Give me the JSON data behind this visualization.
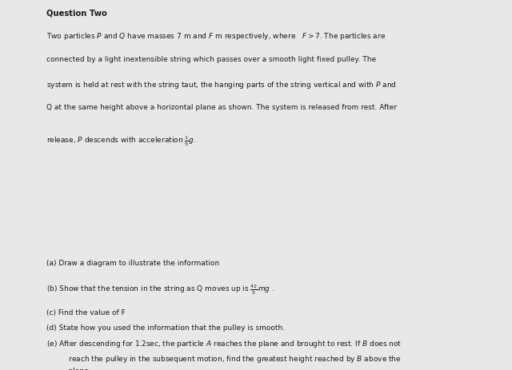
{
  "bg_color": "#e8e8e8",
  "top_panel_bg": "#ffffff",
  "bottom_panel_bg": "#ffffff",
  "divider_color": "#c0c0c0",
  "text_color": "#1a1a1a",
  "font_size_title": 7.2,
  "font_size_body": 6.5,
  "top_panel": {
    "title": "Question Two",
    "line1": "Two particles $P$ and $Q$ have masses 7 m and $F$ m respectively, where   $F > 7$. The particles are",
    "line2": "connected by a light inextensible string which passes over a smooth light fixed pulley. The",
    "line3": "system is held at rest with the string taut, the hanging parts of the string vertical and with $P$ and",
    "line4": "Q at the same height above a horizontal plane as shown. The system is released from rest. After",
    "line5_prefix": "release, $P$ descends with acceleration $\\frac{1}{5}g$."
  },
  "bottom_panel": {
    "line_a": "(a) Draw a diagram to illustrate the information",
    "line_b_prefix": "(b) Show that the tension in the string as Q moves up is $\\frac{42}{5}$$mg$ .",
    "line_c": "(c) Find the value of F",
    "line_d": "(d) State how you used the information that the pulley is smooth.",
    "line_e1": "(e) After descending for 1.2sec, the particle $A$ reaches the plane and brought to rest. If $B$ does not",
    "line_e2": "    reach the pulley in the subsequent motion, find the greatest height reached by $B$ above the",
    "line_e3": "    plane."
  }
}
